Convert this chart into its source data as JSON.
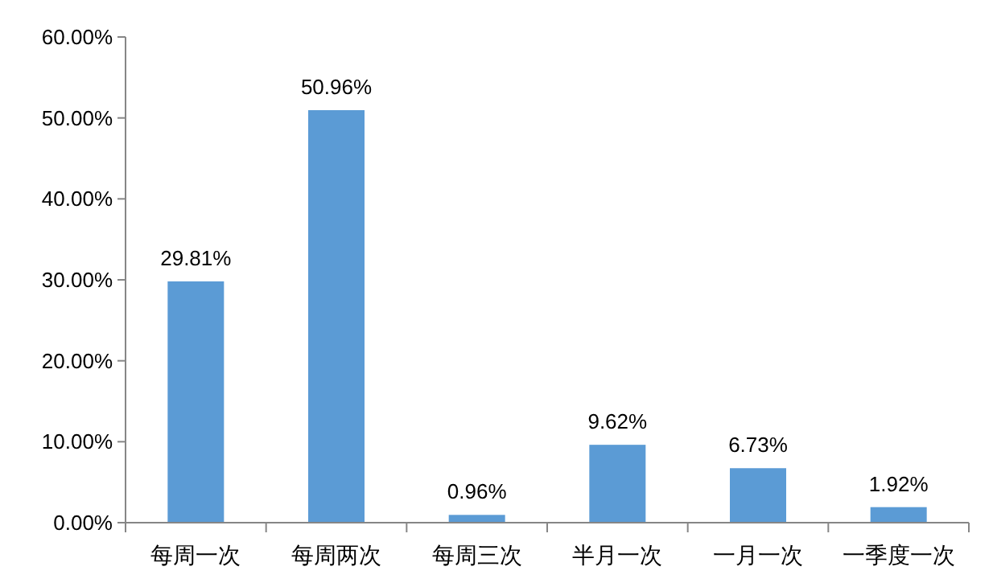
{
  "chart_data": {
    "type": "bar",
    "categories": [
      "每周一次",
      "每周两次",
      "每周三次",
      "半月一次",
      "一月一次",
      "一季度一次"
    ],
    "values": [
      29.81,
      50.96,
      0.96,
      9.62,
      6.73,
      1.92
    ],
    "value_labels": [
      "29.81%",
      "50.96%",
      "0.96%",
      "9.62%",
      "6.73%",
      "1.92%"
    ],
    "color": "#5b9bd5",
    "ylim": [
      0,
      60
    ],
    "yticks": [
      {
        "value": 0,
        "label": "0.00%"
      },
      {
        "value": 10,
        "label": "10.00%"
      },
      {
        "value": 20,
        "label": "20.00%"
      },
      {
        "value": 30,
        "label": "30.00%"
      },
      {
        "value": 40,
        "label": "40.00%"
      },
      {
        "value": 50,
        "label": "50.00%"
      },
      {
        "value": 60,
        "label": "60.00%"
      }
    ],
    "grid": false
  }
}
